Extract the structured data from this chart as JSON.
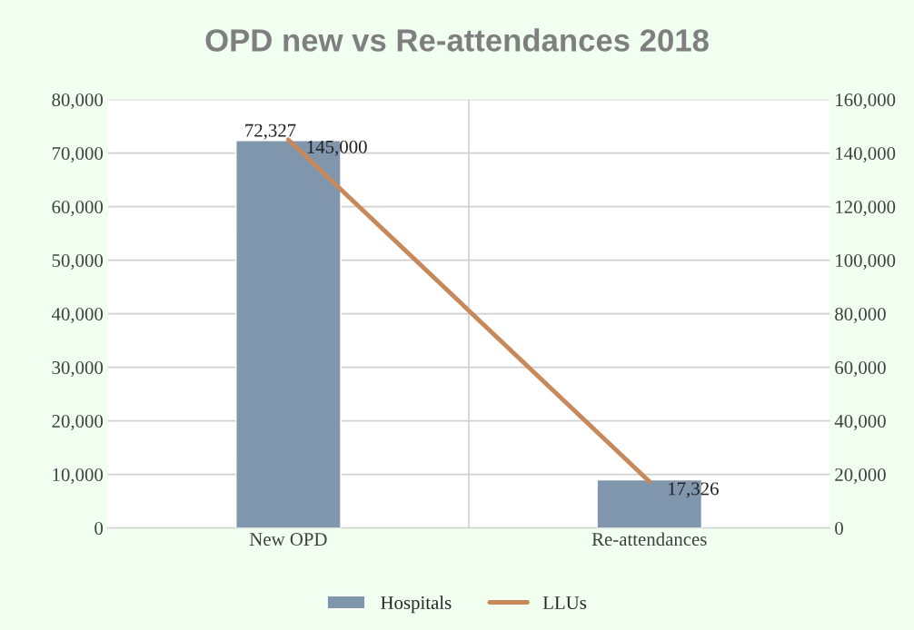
{
  "chart_data": {
    "type": "bar",
    "title": "OPD new vs Re-attendances 2018",
    "categories": [
      "New OPD",
      "Re-attendances"
    ],
    "series": [
      {
        "name": "Hospitals",
        "color": "#7f96ad",
        "values": [
          72327,
          9000
        ],
        "value_labels": [
          "72,327",
          null
        ]
      },
      {
        "name": "LLUs",
        "type": "line",
        "axis": "y2",
        "color": "#c8895a",
        "values": [
          145000,
          17326
        ],
        "value_labels": [
          "145,000",
          "17,326"
        ]
      }
    ],
    "ylim": [
      0,
      80000
    ],
    "yticks": [
      {
        "value": 0,
        "label": "0"
      },
      {
        "value": 10000,
        "label": "10,000"
      },
      {
        "value": 20000,
        "label": "20,000"
      },
      {
        "value": 30000,
        "label": "30,000"
      },
      {
        "value": 40000,
        "label": "40,000"
      },
      {
        "value": 50000,
        "label": "50,000"
      },
      {
        "value": 60000,
        "label": "60,000"
      },
      {
        "value": 70000,
        "label": "70,000"
      },
      {
        "value": 80000,
        "label": "80,000"
      }
    ],
    "y2lim": [
      0,
      160000
    ],
    "y2ticks": [
      {
        "value": 0,
        "label": "0"
      },
      {
        "value": 20000,
        "label": "20,000"
      },
      {
        "value": 40000,
        "label": "40,000"
      },
      {
        "value": 60000,
        "label": "60,000"
      },
      {
        "value": 80000,
        "label": "80,000"
      },
      {
        "value": 100000,
        "label": "100,000"
      },
      {
        "value": 120000,
        "label": "120,000"
      },
      {
        "value": 140000,
        "label": "140,000"
      },
      {
        "value": 160000,
        "label": "160,000"
      }
    ],
    "grid": true,
    "legend": "bottom",
    "marker": "none"
  }
}
